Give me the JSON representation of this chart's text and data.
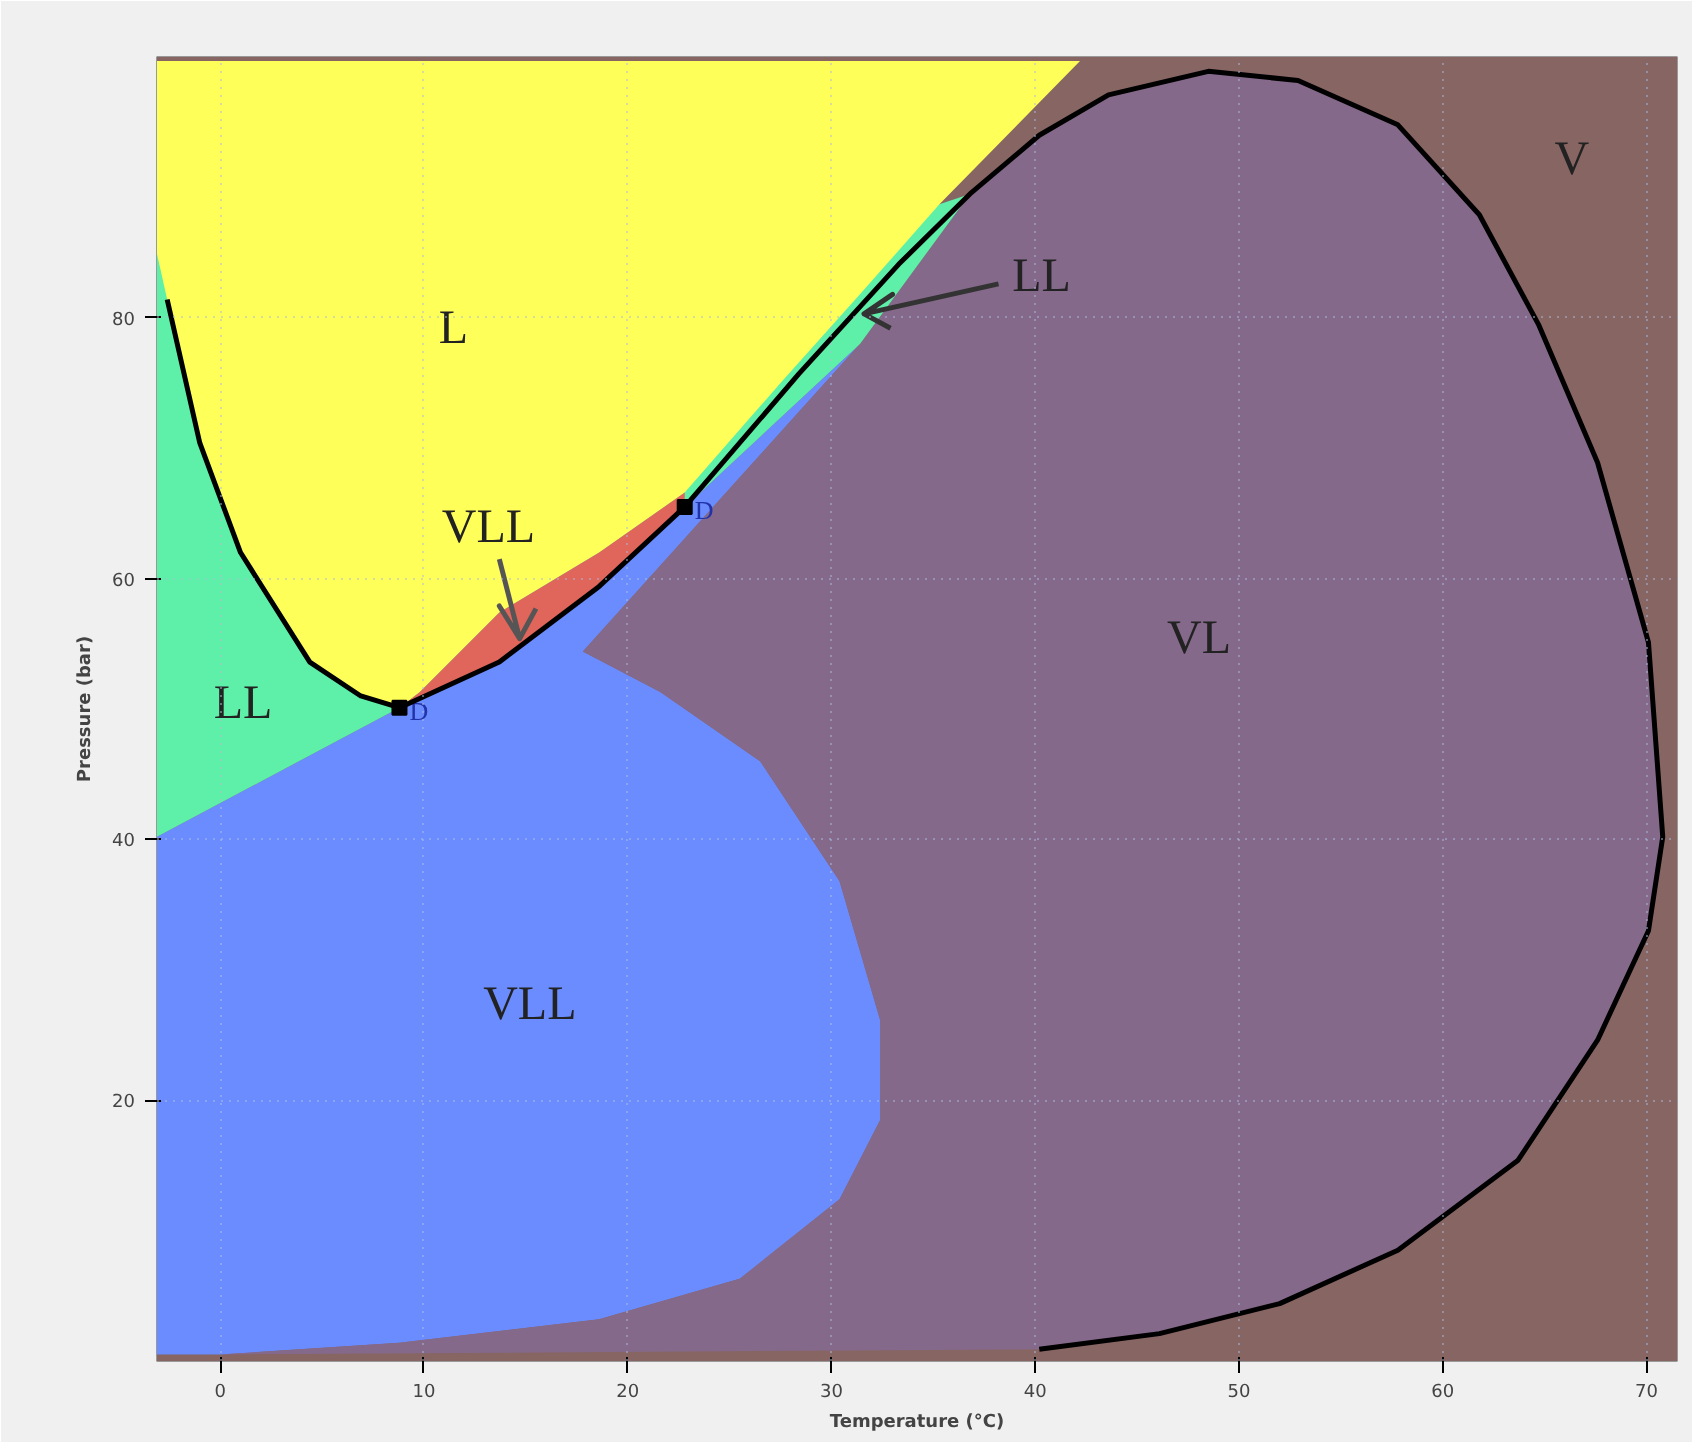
{
  "chart_data": {
    "type": "line",
    "xlabel": "Temperature (°C)",
    "ylabel": "Pressure (bar)",
    "xlim": [
      -3.1,
      71.5
    ],
    "ylim": [
      0,
      100
    ],
    "xticks": [
      0,
      10,
      20,
      30,
      40,
      50,
      60,
      70
    ],
    "yticks": [
      20,
      40,
      60,
      80
    ],
    "grid": true,
    "series": [
      {
        "type": "area",
        "name": "V",
        "color": "#876563",
        "x": [
          -3.1,
          71.5,
          71.5,
          -3.1
        ],
        "values": [
          0,
          0,
          100,
          100
        ]
      },
      {
        "type": "area",
        "name": "VLL",
        "color": "#6a8cff",
        "x": [
          -3.1,
          -3.1,
          8.8,
          22.8,
          31.4,
          17.8,
          21.6,
          26.5,
          30.4,
          32.4,
          32.4,
          30.4,
          25.5,
          18.6,
          8.8,
          0
        ],
        "values": [
          0.5,
          40.2,
          50.1,
          65.5,
          78.0,
          54.4,
          51.3,
          46.0,
          36.8,
          26.1,
          18.5,
          12.4,
          6.3,
          3.2,
          1.4,
          0.5
        ]
      },
      {
        "type": "area",
        "name": "VL",
        "color": "#85698a",
        "x": [
          0,
          8.8,
          18.6,
          25.5,
          30.4,
          32.4,
          32.4,
          30.4,
          26.5,
          21.6,
          17.8,
          31.4,
          36.8,
          40.2,
          43.6,
          48.5,
          52.9,
          57.8,
          61.8,
          64.7,
          67.6,
          70.1,
          70.8,
          70.1,
          67.6,
          63.7,
          57.8,
          52.0,
          46.1,
          40.2
        ],
        "values": [
          0.5,
          1.4,
          3.2,
          6.3,
          12.4,
          18.5,
          26.1,
          36.8,
          46.0,
          51.3,
          54.4,
          78.0,
          89.5,
          94.0,
          97.1,
          98.9,
          98.2,
          94.8,
          87.9,
          79.5,
          68.9,
          55.1,
          40.2,
          33.0,
          24.6,
          15.4,
          8.5,
          4.4,
          2.1,
          0.9
        ]
      },
      {
        "type": "area",
        "name": "LL",
        "color": "#5ef0a8",
        "x": [
          -3.1,
          -3.1,
          8.8,
          22.8,
          31.4,
          36.8,
          35.3
        ],
        "values": [
          85.6,
          40.2,
          50.1,
          65.5,
          78.0,
          89.5,
          88.7
        ]
      },
      {
        "type": "area",
        "name": "L",
        "color": "#ffff5a",
        "x": [
          -3.1,
          42.2,
          35.3,
          31.4,
          27.5,
          22.8,
          18.6,
          13.7,
          9.8,
          8.8,
          6.9,
          4.4,
          1.0,
          -1.0,
          -2.6,
          -3.1
        ],
        "values": [
          99.7,
          99.7,
          88.7,
          81.8,
          75.0,
          66.6,
          62.0,
          57.4,
          51.3,
          50.1,
          51.0,
          53.6,
          62.0,
          70.4,
          81.4,
          84.9
        ]
      },
      {
        "type": "area",
        "color": "#e0655a",
        "x": [
          8.8,
          13.7,
          18.6,
          22.8,
          22.8,
          18.6,
          13.7,
          9.8
        ],
        "values": [
          50.1,
          53.6,
          59.4,
          65.5,
          66.6,
          62.0,
          57.4,
          51.3
        ]
      },
      {
        "color": "#000000",
        "x": [
          -2.6,
          -1.0,
          1.0,
          4.4,
          6.9,
          8.8,
          13.7,
          18.6,
          22.8,
          28.4,
          33.3,
          36.8,
          40.2,
          43.6,
          48.5,
          52.9,
          57.8,
          61.8,
          64.7,
          67.6,
          70.1,
          70.8,
          70.1,
          67.6,
          63.7,
          57.8,
          52.0,
          46.1,
          40.2
        ],
        "values": [
          81.4,
          70.4,
          62.0,
          53.6,
          51.0,
          50.1,
          53.6,
          59.4,
          65.5,
          75.7,
          84.1,
          89.5,
          94.0,
          97.1,
          98.9,
          98.2,
          94.8,
          87.9,
          79.5,
          68.9,
          55.1,
          40.2,
          33.0,
          24.6,
          15.4,
          8.5,
          4.4,
          2.1,
          0.9
        ]
      },
      {
        "name": "LL",
        "color": "#333333",
        "x": [
          38.2,
          31.6,
          33.0,
          31.6,
          32.9
        ],
        "values": [
          82.6,
          80.3,
          81.8,
          80.3,
          79.2
        ]
      },
      {
        "name": "VLL",
        "color": "#555555",
        "x": [
          13.7,
          14.7,
          13.7,
          14.7,
          15.5
        ],
        "values": [
          61.5,
          55.4,
          57.9,
          55.4,
          57.7
        ]
      },
      {
        "type": "scatter",
        "color": "#000000",
        "marker": "square",
        "x": [
          8.8,
          22.8
        ],
        "values": [
          50.1,
          65.5
        ],
        "value_labels": [
          "D",
          "D"
        ]
      }
    ]
  }
}
